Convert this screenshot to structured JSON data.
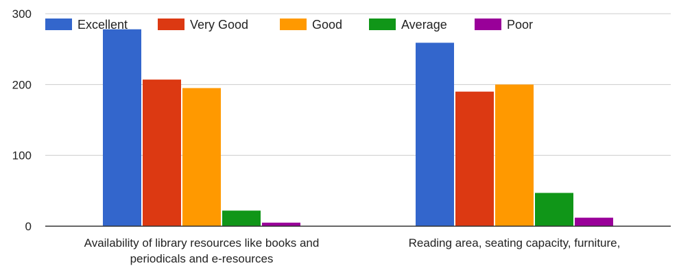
{
  "chart_data": {
    "type": "bar",
    "categories": [
      [
        "Availability of library resources like books and",
        "periodicals and e-resources"
      ],
      [
        "Reading area, seating capacity, furniture,"
      ]
    ],
    "series": [
      {
        "name": "Excellent",
        "values": [
          278,
          259
        ],
        "color": "#3366cc"
      },
      {
        "name": "Very Good",
        "values": [
          207,
          190
        ],
        "color": "#dc3912"
      },
      {
        "name": "Good",
        "values": [
          195,
          200
        ],
        "color": "#ff9900"
      },
      {
        "name": "Average",
        "values": [
          22,
          47
        ],
        "color": "#109618"
      },
      {
        "name": "Poor",
        "values": [
          5,
          12
        ],
        "color": "#990099"
      }
    ],
    "ylim": [
      0,
      300
    ],
    "yticks": [
      0,
      100,
      200,
      300
    ],
    "grid": true,
    "legend": "top"
  }
}
